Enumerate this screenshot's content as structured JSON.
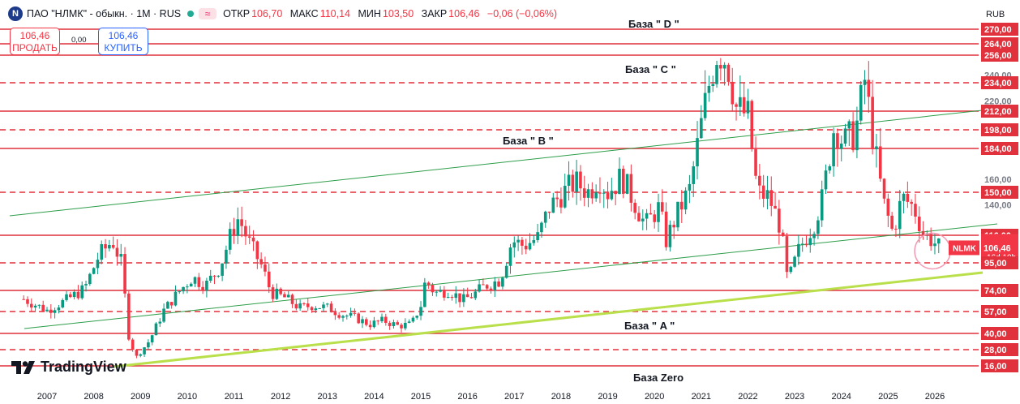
{
  "header": {
    "logo_letter": "N",
    "symbol": "ПАО \"НЛМК\" - обыкн. · 1M · RUS",
    "toggle_glyph": "≈",
    "open_label": "ОТКР",
    "open": "106,70",
    "high_label": "МАКС",
    "high": "110,14",
    "low_label": "МИН",
    "low": "103,50",
    "close_label": "ЗАКР",
    "close": "106,46",
    "change": "−0,06 (−0,06%)"
  },
  "trade": {
    "sell_price": "106,46",
    "sell_label": "ПРОДАТЬ",
    "spread": "0,00",
    "buy_price": "106,46",
    "buy_label": "КУПИТЬ"
  },
  "brand": "TradingView",
  "currency": "RUB",
  "colors": {
    "up": "#089981",
    "down": "#f23645",
    "level": "#e0313c",
    "channel": "#2e9e4a",
    "support": "#b9e04b",
    "circle": "#f39bb4"
  },
  "chart_data": {
    "type": "candlestick",
    "x_ticks": [
      "2007",
      "2008",
      "2009",
      "2010",
      "2011",
      "2012",
      "2013",
      "2014",
      "2015",
      "2016",
      "2017",
      "2018",
      "2019",
      "2020",
      "2021",
      "2022",
      "2023",
      "2024",
      "2025",
      "2026"
    ],
    "y_tick_labels": [
      "270,00",
      "264,00",
      "256,00",
      "240,00",
      "234,00",
      "220,00",
      "212,00",
      "198,00",
      "184,00",
      "160,00",
      "150,00",
      "140,00",
      "116,00",
      "106,46",
      "95,00",
      "74,00",
      "57,00",
      "40,00",
      "28,00",
      "16,00"
    ],
    "levels": [
      {
        "value": 270,
        "style": "solid"
      },
      {
        "value": 264,
        "style": "solid"
      },
      {
        "value": 256,
        "style": "solid"
      },
      {
        "value": 234,
        "style": "dashed"
      },
      {
        "value": 212,
        "style": "solid"
      },
      {
        "value": 198,
        "style": "dashed"
      },
      {
        "value": 184,
        "style": "solid"
      },
      {
        "value": 150,
        "style": "dashed"
      },
      {
        "value": 116,
        "style": "solid"
      },
      {
        "value": 95,
        "style": "dashed"
      },
      {
        "value": 74,
        "style": "solid"
      },
      {
        "value": 57,
        "style": "dashed"
      },
      {
        "value": 40,
        "style": "solid"
      },
      {
        "value": 28,
        "style": "dashed"
      },
      {
        "value": 16,
        "style": "solid"
      }
    ],
    "labels": [
      "База \" D \"",
      "База \" C \"",
      "База \" B \"",
      "База \" A \"",
      "База Zero"
    ],
    "last_price": {
      "value": "106,46",
      "ticker": "NLMK",
      "countdown": "16d 10h"
    },
    "price_path": [
      [
        2006.5,
        67
      ],
      [
        2007.0,
        58
      ],
      [
        2007.4,
        66
      ],
      [
        2007.8,
        75
      ],
      [
        2008.1,
        100
      ],
      [
        2008.4,
        112
      ],
      [
        2008.6,
        94
      ],
      [
        2008.75,
        38
      ],
      [
        2008.9,
        22
      ],
      [
        2009.2,
        35
      ],
      [
        2009.5,
        58
      ],
      [
        2009.8,
        72
      ],
      [
        2010.1,
        84
      ],
      [
        2010.4,
        78
      ],
      [
        2010.7,
        92
      ],
      [
        2010.95,
        118
      ],
      [
        2011.1,
        130
      ],
      [
        2011.3,
        112
      ],
      [
        2011.6,
        92
      ],
      [
        2011.8,
        72
      ],
      [
        2012.1,
        68
      ],
      [
        2012.4,
        60
      ],
      [
        2012.7,
        62
      ],
      [
        2013.0,
        60
      ],
      [
        2013.3,
        55
      ],
      [
        2013.6,
        52
      ],
      [
        2013.9,
        47
      ],
      [
        2014.2,
        50
      ],
      [
        2014.5,
        46
      ],
      [
        2014.8,
        47
      ],
      [
        2015.0,
        62
      ],
      [
        2015.1,
        82
      ],
      [
        2015.3,
        72
      ],
      [
        2015.6,
        74
      ],
      [
        2015.9,
        66
      ],
      [
        2016.1,
        70
      ],
      [
        2016.4,
        78
      ],
      [
        2016.7,
        82
      ],
      [
        2016.95,
        112
      ],
      [
        2017.2,
        108
      ],
      [
        2017.5,
        114
      ],
      [
        2017.75,
        138
      ],
      [
        2018.0,
        148
      ],
      [
        2018.3,
        158
      ],
      [
        2018.6,
        150
      ],
      [
        2018.8,
        162
      ],
      [
        2019.0,
        150
      ],
      [
        2019.3,
        162
      ],
      [
        2019.6,
        140
      ],
      [
        2019.8,
        124
      ],
      [
        2020.1,
        138
      ],
      [
        2020.25,
        112
      ],
      [
        2020.5,
        134
      ],
      [
        2020.75,
        152
      ],
      [
        2020.95,
        192
      ],
      [
        2021.15,
        230
      ],
      [
        2021.35,
        260
      ],
      [
        2021.55,
        252
      ],
      [
        2021.75,
        215
      ],
      [
        2022.0,
        208
      ],
      [
        2022.2,
        150
      ],
      [
        2022.45,
        146
      ],
      [
        2022.7,
        122
      ],
      [
        2022.85,
        80
      ],
      [
        2023.1,
        106
      ],
      [
        2023.4,
        124
      ],
      [
        2023.6,
        146
      ],
      [
        2023.85,
        202
      ],
      [
        2024.05,
        188
      ],
      [
        2024.3,
        196
      ],
      [
        2024.5,
        236
      ],
      [
        2024.7,
        186
      ],
      [
        2024.9,
        142
      ],
      [
        2025.1,
        118
      ],
      [
        2025.3,
        146
      ],
      [
        2025.55,
        138
      ],
      [
        2025.75,
        118
      ],
      [
        2025.95,
        112
      ],
      [
        2026.1,
        106.46
      ]
    ]
  }
}
